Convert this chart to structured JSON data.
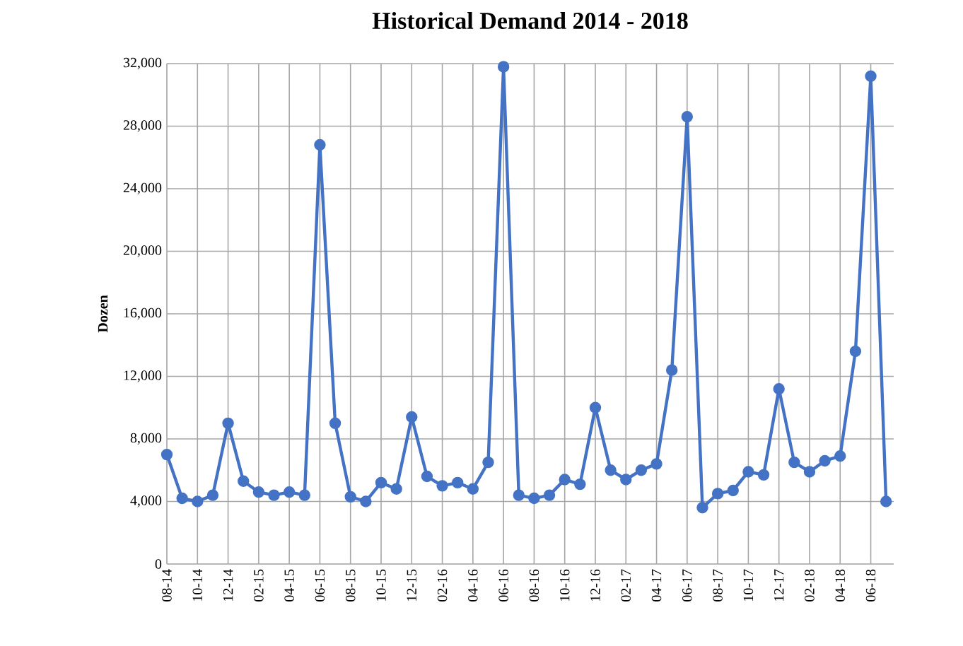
{
  "chart_data": {
    "type": "line",
    "title": "Historical Demand 2014 - 2018",
    "ylabel": "Dozen",
    "categories": [
      "08-14",
      null,
      "10-14",
      null,
      "12-14",
      null,
      "02-15",
      null,
      "04-15",
      null,
      "06-15",
      null,
      "08-15",
      null,
      "10-15",
      null,
      "12-15",
      null,
      "02-16",
      null,
      "04-16",
      null,
      "06-16",
      null,
      "08-16",
      null,
      "10-16",
      null,
      "12-16",
      null,
      "02-17",
      null,
      "04-17",
      null,
      "06-17",
      null,
      "08-17",
      null,
      "10-17",
      null,
      "12-17",
      null,
      "02-18",
      null,
      "04-18",
      null,
      "06-18",
      null
    ],
    "series": [
      {
        "color": "#4472c4",
        "values": [
          7000,
          4200,
          4000,
          4400,
          9000,
          5300,
          4600,
          4400,
          4600,
          4400,
          26800,
          9000,
          4300,
          4000,
          5200,
          4800,
          9400,
          5600,
          5000,
          5200,
          4800,
          6500,
          31800,
          4400,
          4200,
          4400,
          5400,
          5100,
          10000,
          6000,
          5400,
          6000,
          6400,
          12400,
          28600,
          3600,
          4500,
          4700,
          5900,
          5700,
          11200,
          6500,
          5900,
          6600,
          6900,
          13600,
          31200,
          4000
        ]
      }
    ],
    "ylim": [
      0,
      32000
    ],
    "yticks": [
      0,
      {
        "value": 4000,
        "label": "4,000"
      },
      {
        "value": 8000,
        "label": "8,000"
      },
      {
        "value": 12000,
        "label": "12,000"
      },
      {
        "value": 16000,
        "label": "16,000"
      },
      {
        "value": 20000,
        "label": "20,000"
      },
      {
        "value": 24000,
        "label": "24,000"
      },
      {
        "value": 28000,
        "label": "28,000"
      },
      {
        "value": 32000,
        "label": "32,000"
      }
    ],
    "grid": true,
    "marker": "circle",
    "line_style": "solid"
  }
}
